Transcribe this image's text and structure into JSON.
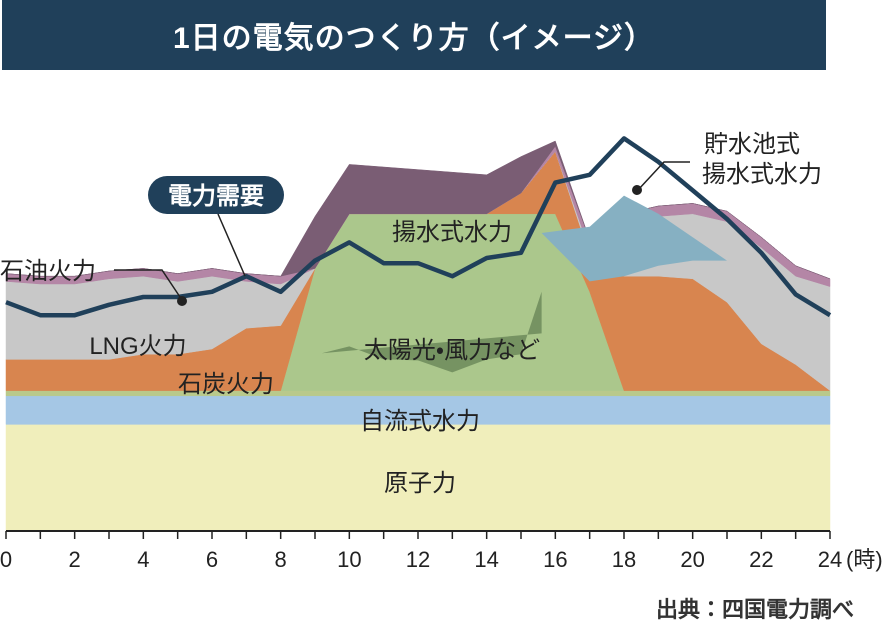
{
  "title": "1日の電気のつくり方（イメージ）",
  "source": "出典：四国電力調べ",
  "colors": {
    "title_bg": "#20405a",
    "nuclear": "#f0eebb",
    "runofriver": "#a5c7e5",
    "biomass": "#b9c98b",
    "solar_wind": "#abc78c",
    "coal": "#d8854f",
    "lng": "#c8c8c8",
    "oil": "#b486a6",
    "pumped_gen": "#7a5d74",
    "reservoir": "#86b0c2",
    "demand_line": "#20405a"
  },
  "chart_data": {
    "type": "area",
    "x_unit": "(時)",
    "xlim": [
      0,
      24
    ],
    "x_ticks": [
      0,
      2,
      4,
      6,
      8,
      10,
      12,
      14,
      16,
      18,
      20,
      22,
      24
    ],
    "x": [
      0,
      1,
      2,
      3,
      4,
      5,
      6,
      7,
      8,
      9,
      10,
      11,
      12,
      13,
      14,
      15,
      16,
      17,
      18,
      19,
      20,
      21,
      22,
      23,
      24
    ],
    "y_axis_shown": false,
    "grid": false,
    "series": [
      {
        "name": "原子力",
        "color_key": "nuclear",
        "values": [
          20.5,
          20.5,
          20.5,
          20.5,
          20.5,
          20.5,
          20.5,
          20.5,
          20.5,
          20.5,
          20.5,
          20.5,
          20.5,
          20.5,
          20.5,
          20.5,
          20.5,
          20.5,
          20.5,
          20.5,
          20.5,
          20.5,
          20.5,
          20.5,
          20.5
        ]
      },
      {
        "name": "自流式水力",
        "color_key": "runofriver",
        "values": [
          5.5,
          5.5,
          5.5,
          5.5,
          5.5,
          5.5,
          5.5,
          5.5,
          5.5,
          5.5,
          5.5,
          5.5,
          5.5,
          5.5,
          5.5,
          5.5,
          5.5,
          5.5,
          5.5,
          5.5,
          5.5,
          5.5,
          5.5,
          5.5,
          5.5
        ]
      },
      {
        "color_key": "biomass",
        "values": [
          1,
          1,
          1,
          1,
          1,
          1,
          1,
          1,
          1,
          1,
          1,
          1,
          1,
          1,
          1,
          1,
          1,
          1,
          1,
          1,
          1,
          1,
          1,
          1,
          1
        ]
      },
      {
        "name": "太陽光・風力など",
        "color_key": "solar_wind",
        "values": [
          0,
          0,
          0,
          0,
          0,
          0,
          0,
          0,
          0,
          23.5,
          34,
          34,
          34,
          34,
          34,
          34,
          34,
          19,
          0,
          0,
          0,
          0,
          0,
          0,
          0
        ]
      },
      {
        "name": "石炭火力",
        "color_key": "coal",
        "values": [
          6,
          6,
          6,
          6,
          7,
          7,
          8,
          12,
          12.5,
          0,
          0,
          0,
          0,
          0,
          0,
          4,
          12,
          7,
          22,
          22,
          21.5,
          17,
          9,
          5,
          0
        ]
      },
      {
        "name": "LNG火力",
        "color_key": "lng",
        "values": [
          15,
          14.5,
          14.5,
          15.5,
          15,
          14,
          14,
          9,
          8,
          0,
          0,
          0,
          0,
          0,
          0,
          0,
          0,
          1,
          10,
          11.5,
          12.5,
          15.5,
          18.5,
          17,
          20
        ]
      },
      {
        "name": "石油火力",
        "color_key": "oil",
        "values": [
          1.5,
          1.5,
          1.5,
          1.5,
          1.5,
          1.5,
          1.5,
          1.5,
          1.5,
          0,
          0,
          0,
          0,
          0,
          0,
          0,
          1,
          2,
          2,
          2,
          2,
          2,
          2,
          2,
          1.5
        ]
      },
      {
        "name": "揚水式水力",
        "color_key": "pumped_gen",
        "values": [
          0,
          0,
          0,
          0,
          0,
          0,
          0,
          0,
          0,
          10,
          9.5,
          9,
          8.5,
          8,
          7.5,
          7,
          1,
          0,
          0,
          0,
          0,
          0,
          0,
          0,
          0
        ]
      }
    ],
    "reservoir_pumping": {
      "name": "貯水池式 揚水式水力",
      "color_key": "reservoir",
      "x": [
        15.6,
        17,
        18,
        19,
        20,
        21,
        22
      ],
      "values": [
        57.3,
        58.5,
        64.5,
        61,
        56.5,
        52,
        46
      ]
    },
    "pumped_storage_charging": {
      "name": "揚水式水力",
      "x": [
        9.2,
        10,
        11,
        12,
        13,
        14,
        15,
        15.6
      ],
      "values": [
        34.2,
        35.5,
        33,
        32.8,
        30.5,
        33,
        34,
        46
      ]
    },
    "demand": {
      "name": "電力需要",
      "x": [
        0,
        1,
        2,
        3,
        4,
        5,
        6,
        7,
        8,
        9,
        10,
        11,
        12,
        13,
        14,
        15,
        16,
        17,
        18,
        19,
        20,
        21,
        22,
        23,
        24
      ],
      "values": [
        44,
        41.5,
        41.5,
        43.5,
        45,
        45,
        46,
        49,
        46,
        52,
        55.5,
        51.5,
        51.5,
        49,
        52.5,
        53.5,
        67,
        68.5,
        75.5,
        71,
        65.5,
        60,
        53.5,
        45.5,
        41.5
      ]
    },
    "annotations": [
      {
        "text": "電力需要",
        "kind": "callout-box"
      },
      {
        "text": "石油火力",
        "kind": "leader"
      },
      {
        "text": "LNG火力",
        "kind": "in-area"
      },
      {
        "text": "石炭火力",
        "kind": "in-area"
      },
      {
        "text": "太陽光・風力など",
        "kind": "in-area"
      },
      {
        "text": "揚水式水力",
        "kind": "in-area"
      },
      {
        "text": "自流式水力",
        "kind": "in-area"
      },
      {
        "text": "原子力",
        "kind": "in-area"
      },
      {
        "text": "貯水池式",
        "kind": "leader"
      },
      {
        "text": "揚水式水力",
        "kind": "leader"
      }
    ]
  }
}
